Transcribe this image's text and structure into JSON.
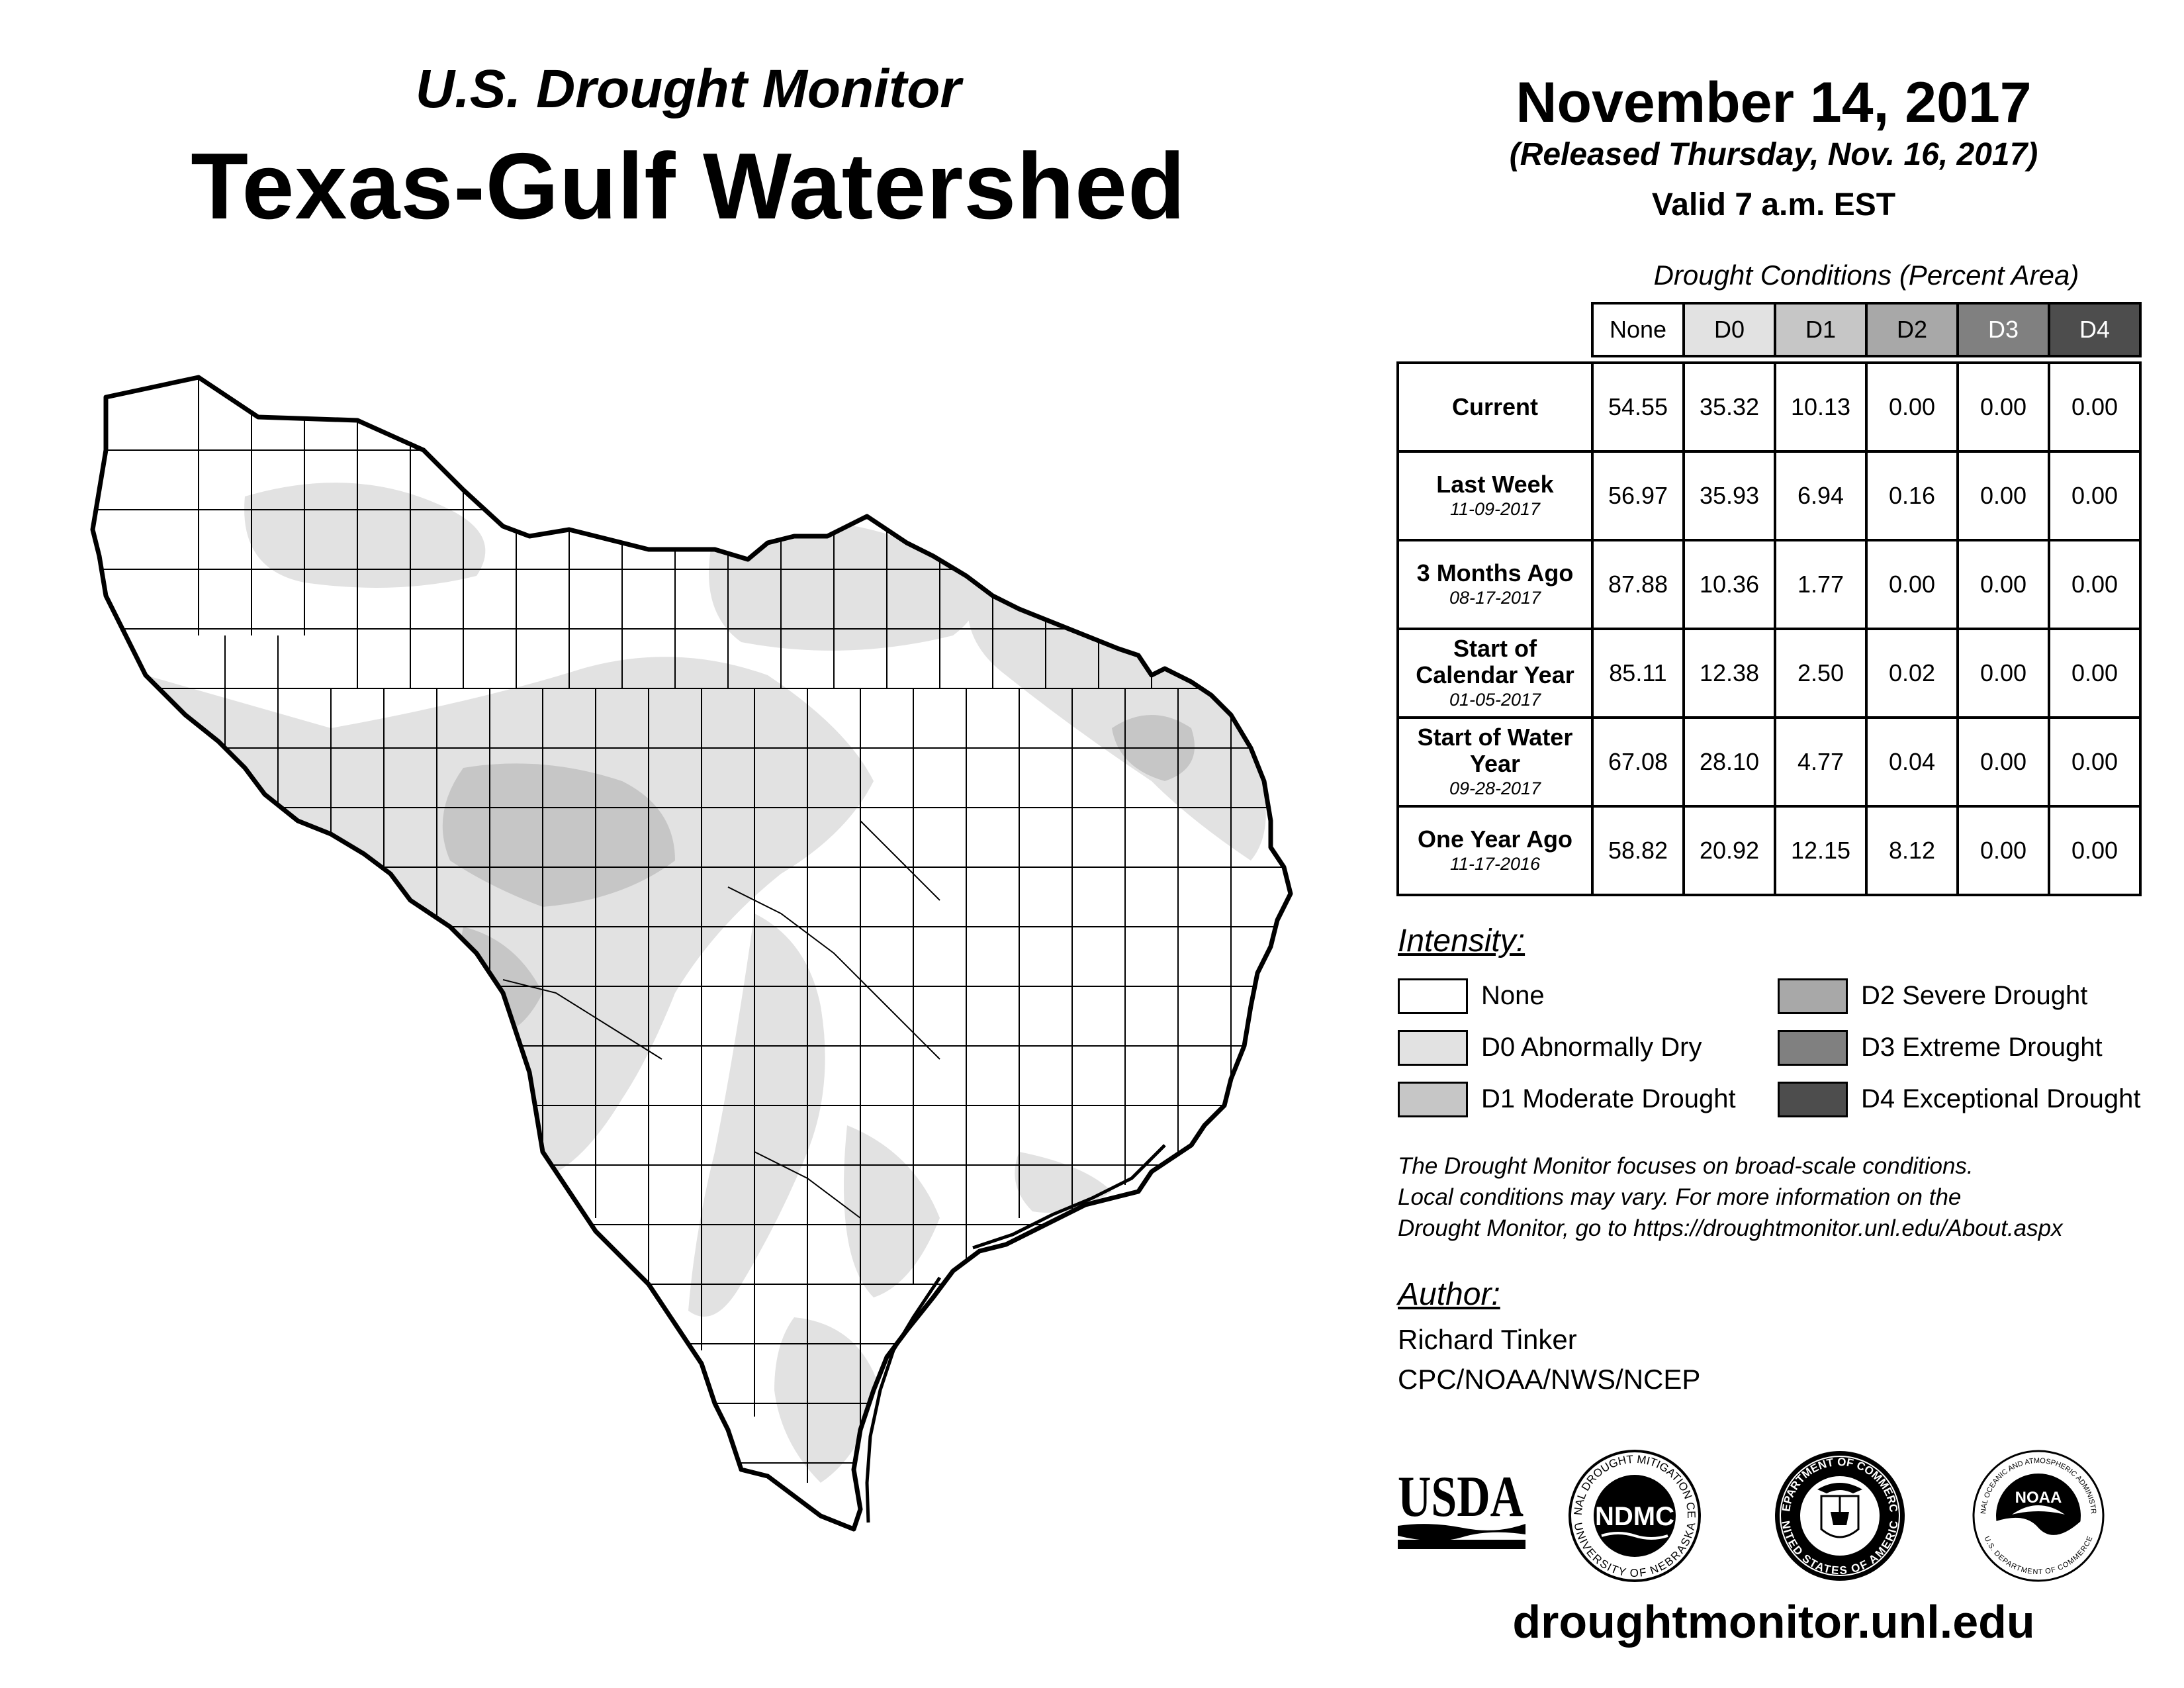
{
  "header": {
    "subtitle": "U.S. Drought Monitor",
    "title": "Texas-Gulf Watershed",
    "date": "November 14, 2017",
    "released": "(Released Thursday, Nov. 16, 2017)",
    "valid": "Valid 7 a.m. EST"
  },
  "table": {
    "caption": "Drought Conditions (Percent Area)",
    "columns": [
      "None",
      "D0",
      "D1",
      "D2",
      "D3",
      "D4"
    ],
    "rows": [
      {
        "label": "Current",
        "date": "",
        "values": [
          "54.55",
          "35.32",
          "10.13",
          "0.00",
          "0.00",
          "0.00"
        ]
      },
      {
        "label": "Last Week",
        "date": "11-09-2017",
        "values": [
          "56.97",
          "35.93",
          "6.94",
          "0.16",
          "0.00",
          "0.00"
        ]
      },
      {
        "label": "3 Months Ago",
        "date": "08-17-2017",
        "values": [
          "87.88",
          "10.36",
          "1.77",
          "0.00",
          "0.00",
          "0.00"
        ]
      },
      {
        "label": "Start of Calendar Year",
        "date": "01-05-2017",
        "values": [
          "85.11",
          "12.38",
          "2.50",
          "0.02",
          "0.00",
          "0.00"
        ]
      },
      {
        "label": "Start of Water Year",
        "date": "09-28-2017",
        "values": [
          "67.08",
          "28.10",
          "4.77",
          "0.04",
          "0.00",
          "0.00"
        ]
      },
      {
        "label": "One Year Ago",
        "date": "11-17-2016",
        "values": [
          "58.82",
          "20.92",
          "12.15",
          "8.12",
          "0.00",
          "0.00"
        ]
      }
    ]
  },
  "legend": {
    "title": "Intensity:",
    "items": [
      {
        "label": "None",
        "color": "#ffffff"
      },
      {
        "label": "D0 Abnormally Dry",
        "color": "#e2e2e2"
      },
      {
        "label": "D1 Moderate Drought",
        "color": "#c6c6c6"
      },
      {
        "label": "D2 Severe Drought",
        "color": "#a8a8a8"
      },
      {
        "label": "D3 Extreme Drought",
        "color": "#808080"
      },
      {
        "label": "D4 Exceptional Drought",
        "color": "#4d4d4d"
      }
    ]
  },
  "note": {
    "line1": "The Drought Monitor focuses on broad-scale conditions.",
    "line2": "Local conditions may vary. For more information on the",
    "line3": "Drought Monitor, go to https://droughtmonitor.unl.edu/About.aspx"
  },
  "author": {
    "title": "Author:",
    "name": "Richard Tinker",
    "org": "CPC/NOAA/NWS/NCEP"
  },
  "logos": {
    "usda": "USDA",
    "ndmc": "NDMC",
    "ndmc_ring_top": "NATIONAL DROUGHT MITIGATION CENTER",
    "ndmc_ring_bottom": "UNIVERSITY OF NEBRASKA",
    "doc_ring_top": "DEPARTMENT OF COMMERCE",
    "doc_ring_bottom": "UNITED STATES OF AMERICA",
    "noaa": "NOAA",
    "noaa_ring_top": "NATIONAL OCEANIC AND ATMOSPHERIC ADMINISTRATION",
    "noaa_ring_bottom": "U.S. DEPARTMENT OF COMMERCE"
  },
  "footer": {
    "url": "droughtmonitor.unl.edu"
  },
  "map": {
    "region": "Texas-Gulf Watershed",
    "water_color": "#ffffff",
    "d0_color": "#e2e2e2",
    "d1_color": "#c6c6c6"
  }
}
